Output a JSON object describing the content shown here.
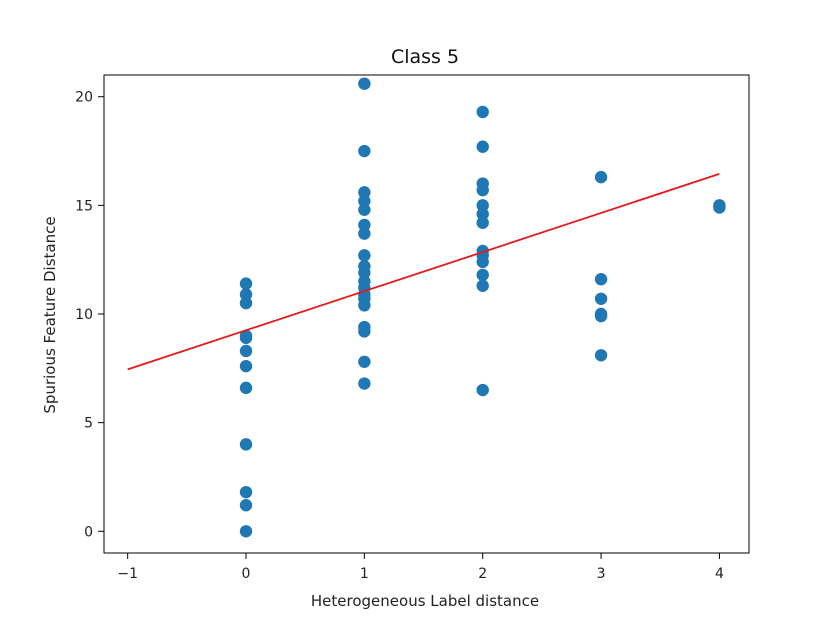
{
  "chart_data": {
    "type": "scatter",
    "title": "Class 5",
    "xlabel": "Heterogeneous Label distance",
    "ylabel": "Spurious Feature Distance",
    "xlim": [
      -1.2,
      4.25
    ],
    "ylim": [
      -1.0,
      21.0
    ],
    "x_ticks": [
      -1,
      0,
      1,
      2,
      3,
      4
    ],
    "x_tick_labels": [
      "−1",
      "0",
      "1",
      "2",
      "3",
      "4"
    ],
    "y_ticks": [
      0,
      5,
      10,
      15,
      20
    ],
    "y_tick_labels": [
      "0",
      "5",
      "10",
      "15",
      "20"
    ],
    "grid": false,
    "marker_color": "#1f77b4",
    "line_color": "#e31a1c",
    "points": [
      {
        "x": 0,
        "y": 11.4
      },
      {
        "x": 0,
        "y": 10.9
      },
      {
        "x": 0,
        "y": 10.5
      },
      {
        "x": 0,
        "y": 9.0
      },
      {
        "x": 0,
        "y": 8.9
      },
      {
        "x": 0,
        "y": 8.3
      },
      {
        "x": 0,
        "y": 7.6
      },
      {
        "x": 0,
        "y": 6.6
      },
      {
        "x": 0,
        "y": 4.0
      },
      {
        "x": 0,
        "y": 1.8
      },
      {
        "x": 0,
        "y": 1.2
      },
      {
        "x": 0,
        "y": 0.0
      },
      {
        "x": 1,
        "y": 20.6
      },
      {
        "x": 1,
        "y": 17.5
      },
      {
        "x": 1,
        "y": 15.6
      },
      {
        "x": 1,
        "y": 15.2
      },
      {
        "x": 1,
        "y": 14.8
      },
      {
        "x": 1,
        "y": 14.1
      },
      {
        "x": 1,
        "y": 13.7
      },
      {
        "x": 1,
        "y": 12.7
      },
      {
        "x": 1,
        "y": 12.2
      },
      {
        "x": 1,
        "y": 11.9
      },
      {
        "x": 1,
        "y": 11.5
      },
      {
        "x": 1,
        "y": 11.2
      },
      {
        "x": 1,
        "y": 10.9
      },
      {
        "x": 1,
        "y": 10.7
      },
      {
        "x": 1,
        "y": 10.4
      },
      {
        "x": 1,
        "y": 9.4
      },
      {
        "x": 1,
        "y": 9.2
      },
      {
        "x": 1,
        "y": 7.8
      },
      {
        "x": 1,
        "y": 6.8
      },
      {
        "x": 2,
        "y": 19.3
      },
      {
        "x": 2,
        "y": 17.7
      },
      {
        "x": 2,
        "y": 16.0
      },
      {
        "x": 2,
        "y": 15.7
      },
      {
        "x": 2,
        "y": 15.0
      },
      {
        "x": 2,
        "y": 14.6
      },
      {
        "x": 2,
        "y": 14.2
      },
      {
        "x": 2,
        "y": 12.9
      },
      {
        "x": 2,
        "y": 12.7
      },
      {
        "x": 2,
        "y": 12.4
      },
      {
        "x": 2,
        "y": 11.8
      },
      {
        "x": 2,
        "y": 11.3
      },
      {
        "x": 2,
        "y": 6.5
      },
      {
        "x": 3,
        "y": 16.3
      },
      {
        "x": 3,
        "y": 11.6
      },
      {
        "x": 3,
        "y": 10.7
      },
      {
        "x": 3,
        "y": 10.0
      },
      {
        "x": 3,
        "y": 9.9
      },
      {
        "x": 3,
        "y": 8.1
      },
      {
        "x": 4,
        "y": 15.0
      },
      {
        "x": 4,
        "y": 14.9
      }
    ],
    "fit_line": {
      "x": [
        -1,
        4
      ],
      "y": [
        7.45,
        16.45
      ]
    }
  }
}
